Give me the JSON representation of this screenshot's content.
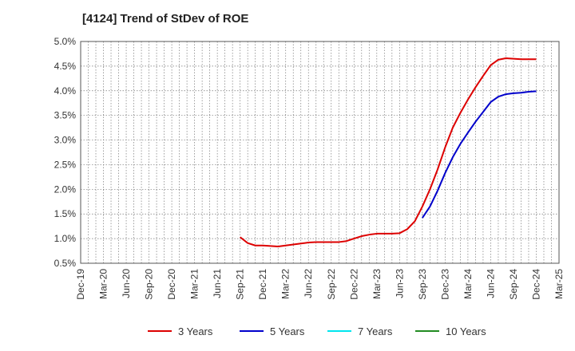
{
  "chart_data": {
    "type": "line",
    "title": "[4124]  Trend of StDev of ROE",
    "xlabel": "",
    "ylabel": "",
    "x_ticks": [
      "Dec-19",
      "Mar-20",
      "Jun-20",
      "Sep-20",
      "Dec-20",
      "Mar-21",
      "Jun-21",
      "Sep-21",
      "Dec-21",
      "Mar-22",
      "Jun-22",
      "Sep-22",
      "Dec-22",
      "Mar-23",
      "Jun-23",
      "Sep-23",
      "Dec-23",
      "Mar-24",
      "Jun-24",
      "Sep-24",
      "Dec-24",
      "Mar-25"
    ],
    "y_ticks": [
      "0.5%",
      "1.0%",
      "1.5%",
      "2.0%",
      "2.5%",
      "3.0%",
      "3.5%",
      "4.0%",
      "4.5%",
      "5.0%"
    ],
    "ylim": [
      0.5,
      5.0
    ],
    "y_unit": "%",
    "grid": true,
    "legend_position": "bottom",
    "series": [
      {
        "name": "3 Years",
        "color": "#dd0000",
        "x": [
          "Sep-21",
          "Oct-21",
          "Nov-21",
          "Dec-21",
          "Jan-22",
          "Feb-22",
          "Mar-22",
          "Apr-22",
          "May-22",
          "Jun-22",
          "Jul-22",
          "Aug-22",
          "Sep-22",
          "Oct-22",
          "Nov-22",
          "Dec-22",
          "Jan-23",
          "Feb-23",
          "Mar-23",
          "Apr-23",
          "May-23",
          "Jun-23",
          "Jul-23",
          "Aug-23",
          "Sep-23",
          "Oct-23",
          "Nov-23",
          "Dec-23",
          "Jan-24",
          "Feb-24",
          "Mar-24",
          "Apr-24",
          "May-24",
          "Jun-24",
          "Jul-24",
          "Aug-24",
          "Sep-24",
          "Oct-24",
          "Nov-24",
          "Dec-24"
        ],
        "values": [
          1.03,
          0.91,
          0.86,
          0.86,
          0.85,
          0.84,
          0.86,
          0.88,
          0.9,
          0.92,
          0.93,
          0.93,
          0.93,
          0.93,
          0.95,
          1.0,
          1.05,
          1.08,
          1.1,
          1.1,
          1.1,
          1.11,
          1.19,
          1.35,
          1.65,
          2.0,
          2.4,
          2.85,
          3.25,
          3.55,
          3.82,
          4.07,
          4.3,
          4.52,
          4.63,
          4.66,
          4.65,
          4.64,
          4.64,
          4.64
        ]
      },
      {
        "name": "5 Years",
        "color": "#0000cc",
        "x": [
          "Sep-23",
          "Oct-23",
          "Nov-23",
          "Dec-23",
          "Jan-24",
          "Feb-24",
          "Mar-24",
          "Apr-24",
          "May-24",
          "Jun-24",
          "Jul-24",
          "Aug-24",
          "Sep-24",
          "Oct-24",
          "Nov-24",
          "Dec-24"
        ],
        "values": [
          1.42,
          1.65,
          1.97,
          2.33,
          2.65,
          2.92,
          3.15,
          3.37,
          3.57,
          3.77,
          3.88,
          3.93,
          3.95,
          3.96,
          3.98,
          3.99
        ]
      },
      {
        "name": "7 Years",
        "color": "#00e5ee",
        "x": [],
        "values": []
      },
      {
        "name": "10 Years",
        "color": "#228b22",
        "x": [],
        "values": []
      }
    ]
  }
}
